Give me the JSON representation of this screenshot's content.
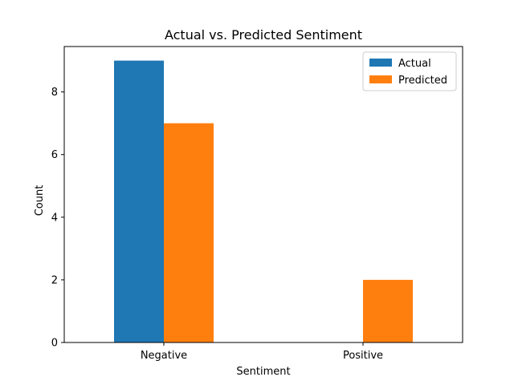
{
  "chart_data": {
    "type": "bar",
    "title": "Actual vs. Predicted Sentiment",
    "xlabel": "Sentiment",
    "ylabel": "Count",
    "categories": [
      "Negative",
      "Positive"
    ],
    "series": [
      {
        "name": "Actual",
        "values": [
          9,
          0
        ],
        "color": "#1f77b4"
      },
      {
        "name": "Predicted",
        "values": [
          7,
          2
        ],
        "color": "#ff7f0e"
      }
    ],
    "ylim": [
      0,
      9.45
    ],
    "yticks": [
      0,
      2,
      4,
      6,
      8
    ],
    "legend_position": "top-right",
    "grid": false
  }
}
